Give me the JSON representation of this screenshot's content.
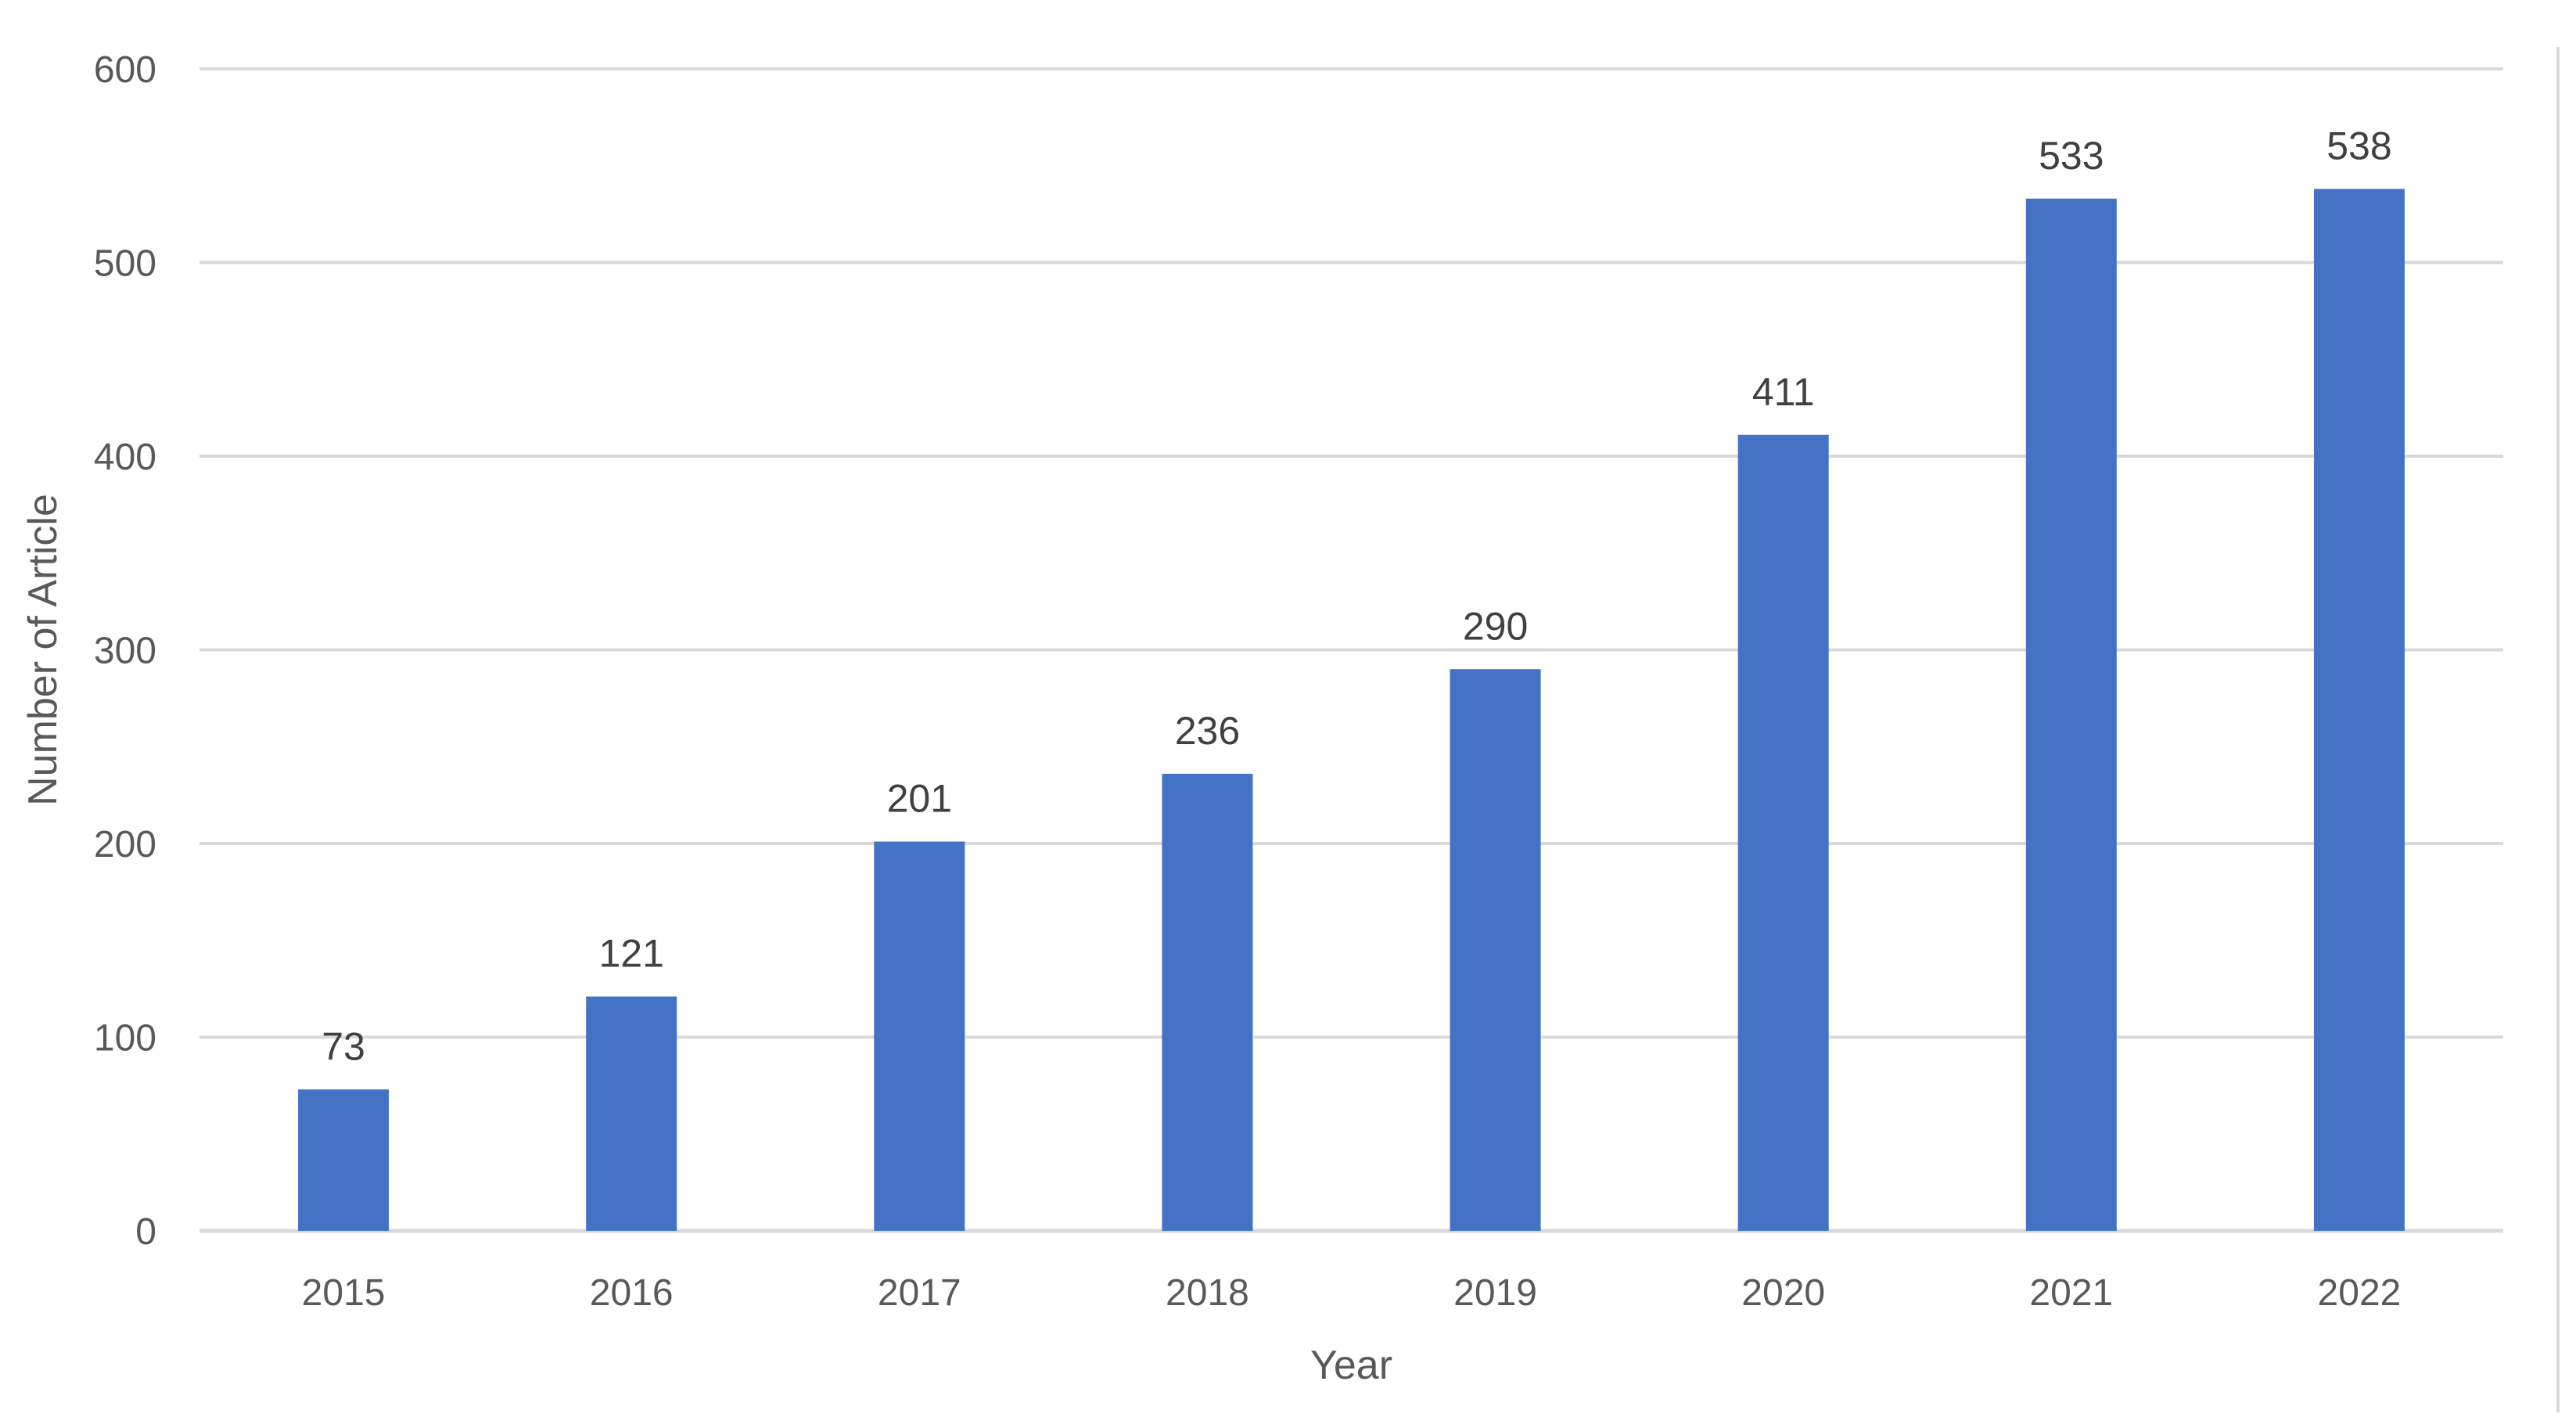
{
  "chart_data": {
    "type": "bar",
    "categories": [
      "2015",
      "2016",
      "2017",
      "2018",
      "2019",
      "2020",
      "2021",
      "2022"
    ],
    "values": [
      73,
      121,
      201,
      236,
      290,
      411,
      533,
      538
    ],
    "data_labels": [
      "73",
      "121",
      "201",
      "236",
      "290",
      "411",
      "533",
      "538"
    ],
    "xlabel": "Year",
    "ylabel": "Number of Article",
    "ylim": [
      0,
      600
    ],
    "yticks": [
      0,
      100,
      200,
      300,
      400,
      500,
      600
    ],
    "ytick_labels": [
      "0",
      "100",
      "200",
      "300",
      "400",
      "500",
      "600"
    ],
    "grid": true,
    "bar_color": "#4472c4"
  }
}
